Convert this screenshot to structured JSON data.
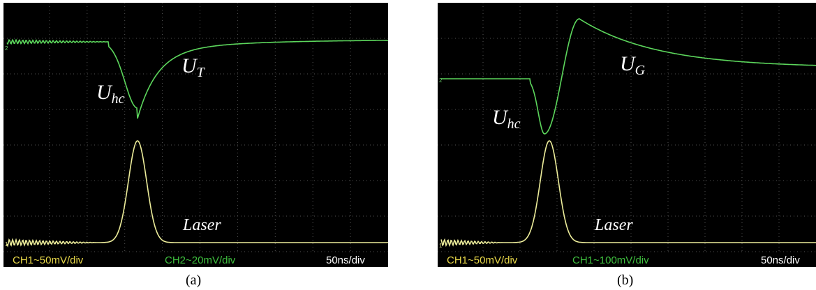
{
  "panels": [
    {
      "caption": "(a)",
      "labels": {
        "hc": {
          "main": "U",
          "sub": "hc"
        },
        "second": {
          "main": "U",
          "sub": "T"
        },
        "laser": "Laser"
      },
      "markers": [
        "2",
        "1"
      ],
      "footer": {
        "ch_yellow": "CH1~50mV/div",
        "ch_green": "CH2~20mV/div",
        "time": "50ns/div"
      }
    },
    {
      "caption": "(b)",
      "labels": {
        "hc": {
          "main": "U",
          "sub": "hc"
        },
        "second": {
          "main": "U",
          "sub": "G"
        },
        "laser": "Laser"
      },
      "markers": [
        "2",
        "1"
      ],
      "footer": {
        "ch_yellow": "CH1~50mV/div",
        "ch_green": "CH1~100mV/div",
        "time": "50ns/div"
      }
    }
  ]
}
